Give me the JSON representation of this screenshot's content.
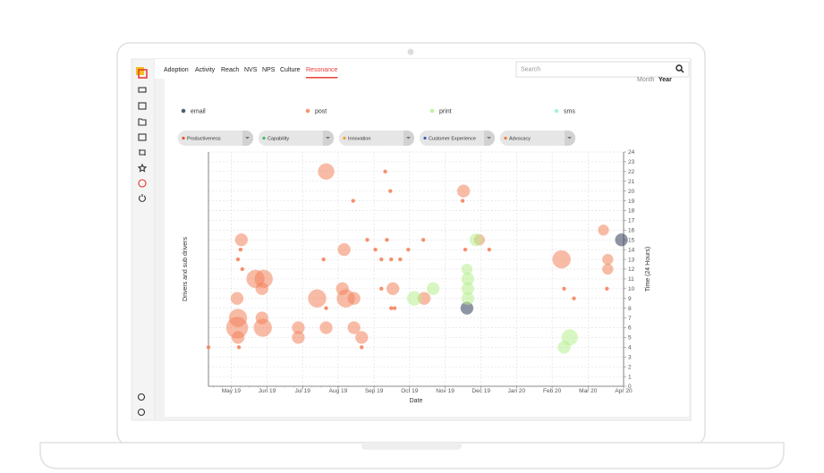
{
  "nav": {
    "tabs": [
      "Adoption",
      "Activity",
      "Reach",
      "NVS",
      "NPS",
      "Culture",
      "Resonance"
    ],
    "active": 6
  },
  "search": {
    "placeholder": "Search"
  },
  "period": [
    "Month",
    "Year"
  ],
  "filters": [
    {
      "label": "Productiveness",
      "color": "#e8503a"
    },
    {
      "label": "Capability",
      "color": "#3cba6a"
    },
    {
      "label": "Innovation",
      "color": "#f0a030"
    },
    {
      "label": "Customer Experience",
      "color": "#3060c0"
    },
    {
      "label": "Advocacy",
      "color": "#f07830"
    }
  ],
  "chart_data": {
    "type": "scatter",
    "xlabel": "Date",
    "ylabel": "Drivers and sub drivers",
    "y2label": "Time (24 Hours)",
    "xlim": [
      2019.28,
      2020.25
    ],
    "xticks": [
      {
        "value": 2019.333,
        "label": "May 19"
      },
      {
        "value": 2019.417,
        "label": "Jun 19"
      },
      {
        "value": 2019.5,
        "label": "Jul 19"
      },
      {
        "value": 2019.583,
        "label": "Aug 19"
      },
      {
        "value": 2019.667,
        "label": "Sep 19"
      },
      {
        "value": 2019.75,
        "label": "Oct 19"
      },
      {
        "value": 2019.833,
        "label": "Nov 19"
      },
      {
        "value": 2019.917,
        "label": "Dec 19"
      },
      {
        "value": 2020,
        "label": "Jan 20"
      },
      {
        "value": 2020.083,
        "label": "Feb 20"
      },
      {
        "value": 2020.167,
        "label": "Mar 20"
      },
      {
        "value": 2020.25,
        "label": "Apr 20"
      }
    ],
    "ylim": [
      0,
      24
    ],
    "yticks": [
      0,
      1,
      2,
      3,
      4,
      5,
      6,
      7,
      8,
      9,
      10,
      11,
      12,
      13,
      14,
      15,
      16,
      17,
      18,
      19,
      20,
      21,
      22,
      23,
      24
    ],
    "grid": true,
    "series": [
      {
        "name": "email",
        "color": "#34405a",
        "x": [
          2019.884,
          2020.245
        ],
        "values": [
          8,
          15
        ],
        "sizes": [
          7,
          7
        ]
      },
      {
        "name": "post",
        "color": "#f4845f",
        "x": [
          2019.555,
          2019.876,
          2019.357,
          2019.597,
          2020.105,
          2020.213,
          2020.213,
          2020.203,
          2019.39,
          2019.409,
          2019.405,
          2019.593,
          2019.711,
          2019.347,
          2019.534,
          2019.601,
          2019.62,
          2019.784,
          2019.349,
          2019.405,
          2019.49,
          2019.347,
          2019.407,
          2019.555,
          2019.62,
          2019.349,
          2019.49,
          2019.638,
          2019.913,
          2019.693,
          2019.705,
          2019.618,
          2019.874,
          2019.355,
          2019.697,
          2019.651,
          2019.747,
          2019.782,
          2019.684,
          2019.707,
          2019.728,
          2019.349,
          2019.549,
          2019.359,
          2020.111,
          2020.134,
          2020.211,
          2019.715,
          2019.684,
          2019.707,
          2019.351,
          2019.638,
          2019.28,
          2019.936,
          2019.88,
          2019.555,
          2019.67
        ],
        "values": [
          22,
          20,
          15,
          14,
          13,
          13,
          12,
          16,
          11,
          11,
          10,
          10,
          10,
          9,
          9,
          9,
          9,
          9,
          7,
          7,
          6,
          6,
          6,
          6,
          6,
          5,
          5,
          5,
          15,
          22,
          20,
          19,
          19,
          14,
          15,
          15,
          14,
          15,
          13,
          13,
          13,
          13,
          13,
          12,
          10,
          9,
          10,
          8,
          10,
          8,
          4,
          4,
          4,
          14,
          14,
          8,
          14
        ],
        "sizes": [
          9,
          7,
          7,
          7,
          10,
          6,
          6,
          6,
          10,
          10,
          7,
          7,
          7,
          7,
          10,
          10,
          7,
          7,
          10,
          7,
          7,
          12,
          10,
          7,
          7,
          7,
          7,
          7,
          6,
          2,
          2,
          2,
          2,
          2,
          2,
          2,
          2,
          2,
          2,
          2,
          2,
          2,
          2,
          2,
          2,
          2,
          2,
          2,
          2,
          2,
          2,
          2,
          2,
          2,
          2,
          2,
          2
        ]
      },
      {
        "name": "print",
        "color": "#b8f090",
        "x": [
          2019.905,
          2019.761,
          2019.805,
          2019.884,
          2019.886,
          2019.886,
          2019.886,
          2020.124,
          2020.111
        ],
        "values": [
          15,
          9,
          10,
          12,
          11,
          10,
          9,
          5,
          4
        ],
        "sizes": [
          7,
          8,
          7,
          6,
          7,
          7,
          7,
          9,
          7
        ]
      },
      {
        "name": "sms",
        "color": "#a0ecd8",
        "x": [],
        "values": [],
        "sizes": []
      }
    ]
  }
}
